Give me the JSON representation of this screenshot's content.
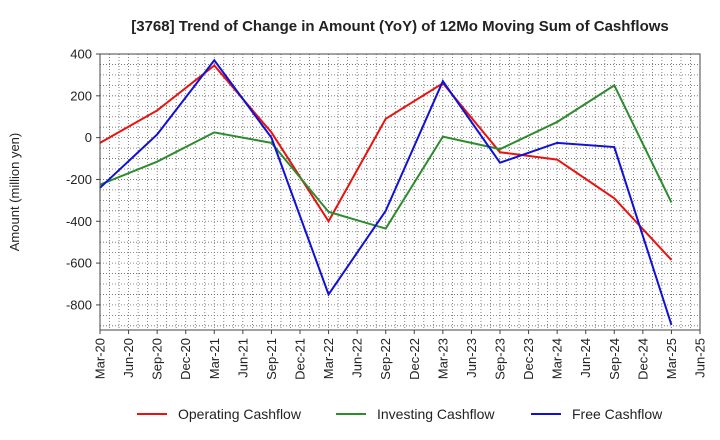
{
  "chart_data": {
    "type": "line",
    "title": "[3768]  Trend of Change in Amount (YoY) of 12Mo Moving Sum of Cashflows",
    "xlabel": "",
    "ylabel": "Amount (million yen)",
    "ylim": [
      -920,
      400
    ],
    "yticks": [
      400,
      200,
      0,
      -200,
      -400,
      -600,
      -800
    ],
    "categories": [
      "Mar-20",
      "Jun-20",
      "Sep-20",
      "Dec-20",
      "Mar-21",
      "Jun-21",
      "Sep-21",
      "Dec-21",
      "Mar-22",
      "Jun-22",
      "Sep-22",
      "Dec-22",
      "Mar-23",
      "Jun-23",
      "Sep-23",
      "Dec-23",
      "Mar-24",
      "Jun-24",
      "Sep-24",
      "Dec-24",
      "Mar-25",
      "Jun-25"
    ],
    "grid": true,
    "legend_position": "bottom",
    "series": [
      {
        "name": "Operating Cashflow",
        "color": "#e8130f",
        "values": [
          -25,
          null,
          130,
          null,
          345,
          null,
          25,
          null,
          -400,
          null,
          90,
          null,
          260,
          null,
          -70,
          null,
          -105,
          null,
          -290,
          null,
          -585,
          null
        ]
      },
      {
        "name": "Investing Cashflow",
        "color": "#2e8b2e",
        "values": [
          -225,
          null,
          -115,
          null,
          25,
          null,
          -25,
          null,
          -355,
          null,
          -435,
          null,
          5,
          null,
          -55,
          null,
          75,
          null,
          250,
          null,
          -310,
          null
        ]
      },
      {
        "name": "Free Cashflow",
        "color": "#1010d8",
        "values": [
          -240,
          null,
          15,
          null,
          370,
          null,
          0,
          null,
          -750,
          null,
          -350,
          null,
          270,
          null,
          -120,
          null,
          -25,
          null,
          -45,
          null,
          -895,
          null
        ]
      }
    ]
  }
}
